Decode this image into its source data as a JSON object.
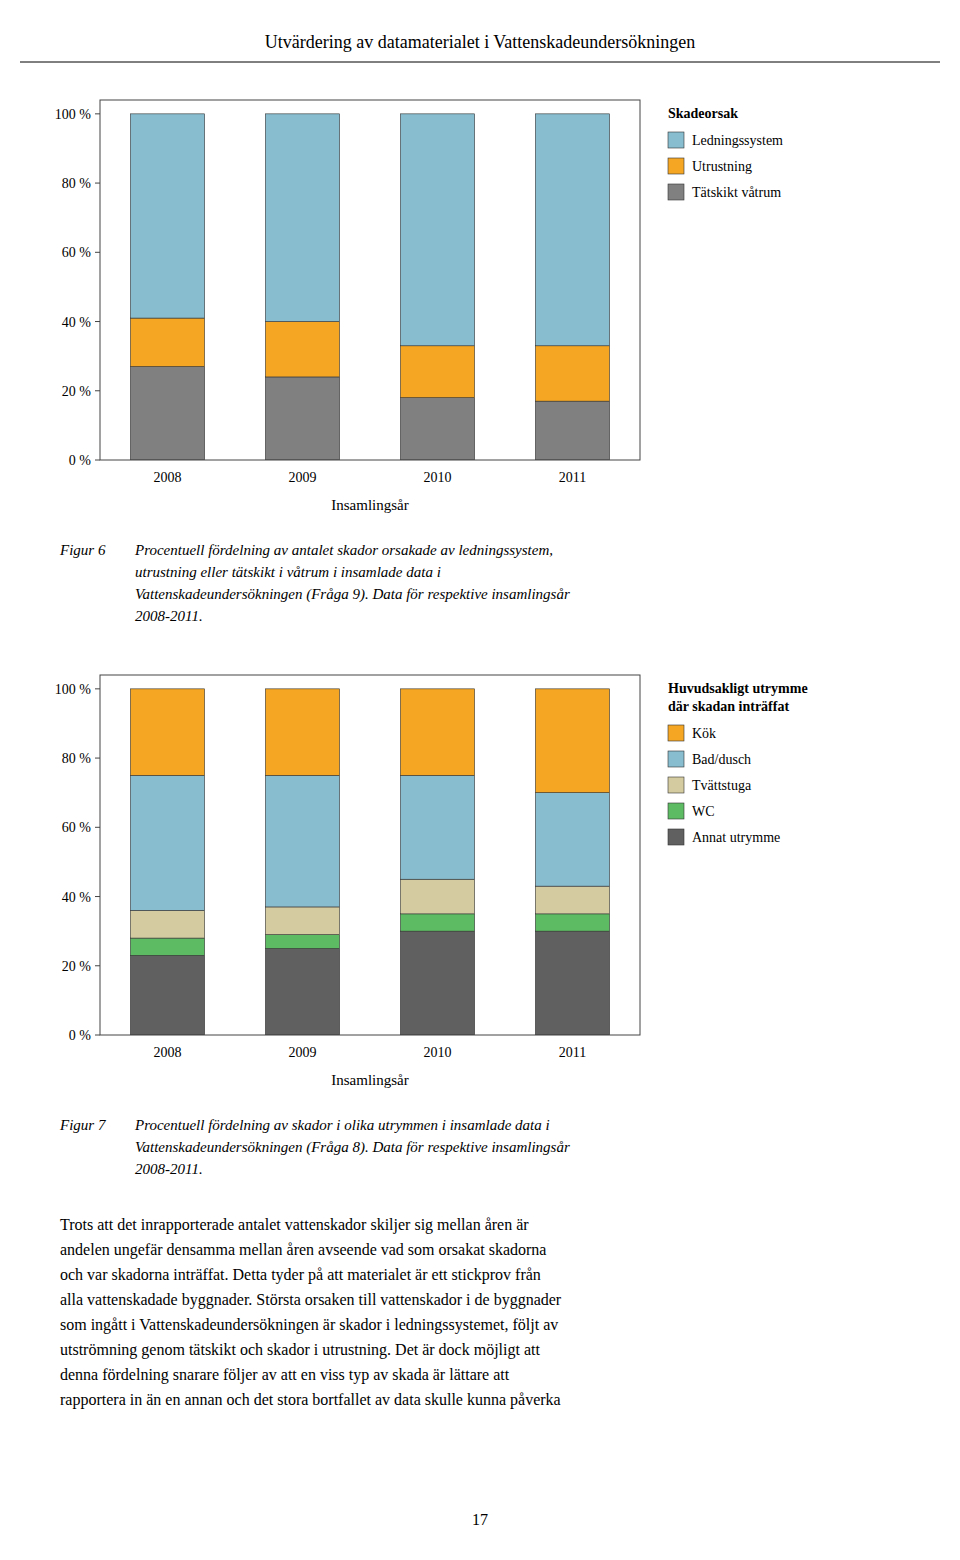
{
  "page_title": "Utvärdering av datamaterialet i Vattenskadeundersökningen",
  "chart_data": [
    {
      "type": "bar",
      "stacked": true,
      "xlabel": "Insamlingsår",
      "legend_title": "Skadeorsak",
      "categories": [
        "2008",
        "2009",
        "2010",
        "2011"
      ],
      "series": [
        {
          "name": "Tätskikt våtrum",
          "color": "#808080",
          "values": [
            27,
            24,
            18,
            17
          ]
        },
        {
          "name": "Utrustning",
          "color": "#F5A623",
          "values": [
            14,
            16,
            15,
            16
          ]
        },
        {
          "name": "Ledningssystem",
          "color": "#87BDCF",
          "values": [
            59,
            60,
            67,
            67
          ]
        }
      ],
      "ylim": [
        0,
        104
      ],
      "yticks": [
        {
          "value": 0,
          "label": "0 %"
        },
        {
          "value": 20,
          "label": "20 %"
        },
        {
          "value": 40,
          "label": "40 %"
        },
        {
          "value": 60,
          "label": "60 %"
        },
        {
          "value": 80,
          "label": "80 %"
        },
        {
          "value": 100,
          "label": "100 %"
        }
      ],
      "grid": false,
      "legend": "right"
    },
    {
      "type": "bar",
      "stacked": true,
      "xlabel": "Insamlingsår",
      "legend_title": "Huvudsakligt utrymme\ndär skadan inträffat",
      "categories": [
        "2008",
        "2009",
        "2010",
        "2011"
      ],
      "series": [
        {
          "name": "Annat utrymme",
          "color": "#606060",
          "values": [
            23,
            25,
            30,
            30
          ]
        },
        {
          "name": "WC",
          "color": "#5DBB63",
          "values": [
            5,
            4,
            5,
            5
          ]
        },
        {
          "name": "Tvättstuga",
          "color": "#D4CCA0",
          "values": [
            8,
            8,
            10,
            8
          ]
        },
        {
          "name": "Bad/dusch",
          "color": "#87BDCF",
          "values": [
            39,
            38,
            30,
            27
          ]
        },
        {
          "name": "Kök",
          "color": "#F5A623",
          "values": [
            25,
            25,
            25,
            30
          ]
        }
      ],
      "ylim": [
        0,
        104
      ],
      "yticks": [
        {
          "value": 0,
          "label": "0 %"
        },
        {
          "value": 20,
          "label": "20 %"
        },
        {
          "value": 40,
          "label": "40 %"
        },
        {
          "value": 60,
          "label": "60 %"
        },
        {
          "value": 80,
          "label": "80 %"
        },
        {
          "value": 100,
          "label": "100 %"
        }
      ],
      "grid": false,
      "legend": "right"
    }
  ],
  "captions": [
    {
      "label": "Figur 6",
      "lines": [
        "Procentuell fördelning av antalet skador orsakade av ledningssystem,",
        "utrustning eller tätskikt i våtrum i insamlade data i",
        "Vattenskadeundersökningen (Fråga 9). Data för respektive insamlingsår",
        "2008-2011."
      ]
    },
    {
      "label": "Figur 7",
      "lines": [
        "Procentuell fördelning av skador i olika utrymmen i insamlade data i",
        "Vattenskadeundersökningen (Fråga 8). Data för respektive insamlingsår",
        "2008-2011."
      ]
    }
  ],
  "body_lines": [
    "Trots att det inrapporterade antalet vattenskador skiljer sig mellan åren är",
    "andelen ungefär densamma mellan åren avseende vad som orsakat skadorna",
    "och var skadorna inträffat. Detta tyder på att materialet är ett stickprov från",
    "alla vattenskadade byggnader. Största orsaken till vattenskador i de byggnader",
    "som ingått i Vattenskadeundersökningen är skador i ledningssystemet, följt av",
    "utströmning genom tätskikt och skador i utrustning. Det är dock möjligt att",
    "denna fördelning snarare följer av att en viss typ av skada är lättare att",
    "rapportera in än en annan och det stora bortfallet av data skulle kunna påverka"
  ],
  "page_number": "17"
}
